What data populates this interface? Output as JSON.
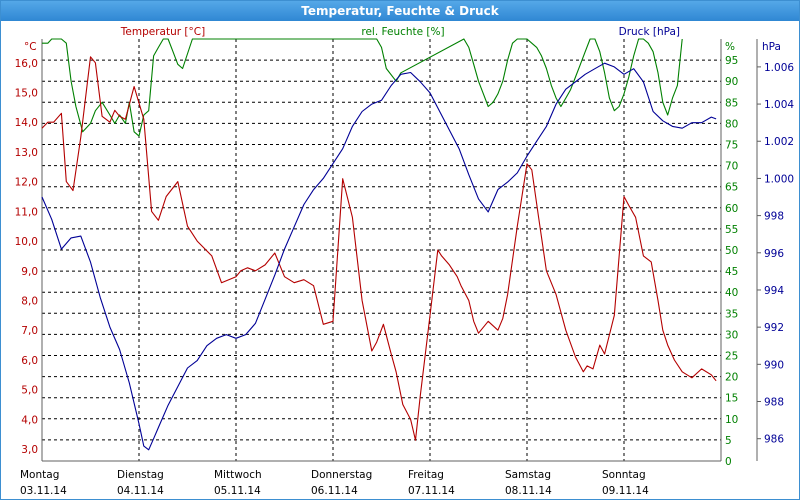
{
  "window": {
    "title": "Temperatur, Feuchte & Druck"
  },
  "chart_data": {
    "type": "line",
    "title": "Temperatur, Feuchte & Druck",
    "grid": true,
    "colors": {
      "temperature": "#b40000",
      "humidity": "#008000",
      "pressure": "#000096",
      "frame": "#3d8fd1"
    },
    "x_axis": {
      "range": [
        0,
        7
      ],
      "days": [
        {
          "day": "Montag",
          "date": "03.11.14"
        },
        {
          "day": "Dienstag",
          "date": "04.11.14"
        },
        {
          "day": "Mittwoch",
          "date": "05.11.14"
        },
        {
          "day": "Donnerstag",
          "date": "06.11.14"
        },
        {
          "day": "Freitag",
          "date": "07.11.14"
        },
        {
          "day": "Samstag",
          "date": "08.11.14"
        },
        {
          "day": "Sonntag",
          "date": "09.11.14"
        }
      ]
    },
    "axes": {
      "temperature": {
        "label": "Temperatur [°C]",
        "unit": "°C",
        "range": [
          2.6,
          16.8
        ],
        "ticks": [
          "16,0",
          "15,0",
          "14,0",
          "13,0",
          "12,0",
          "11,0",
          "10,0",
          "9,0",
          "8,0",
          "7,0",
          "6,0",
          "5,0",
          "4,0",
          "3,0"
        ],
        "tick_values": [
          16,
          15,
          14,
          13,
          12,
          11,
          10,
          9,
          8,
          7,
          6,
          5,
          4,
          3
        ]
      },
      "humidity": {
        "label": "rel. Feuchte [%]",
        "unit": "%",
        "range": [
          0,
          100
        ],
        "ticks": [
          "95",
          "90",
          "85",
          "80",
          "75",
          "70",
          "65",
          "60",
          "55",
          "50",
          "45",
          "40",
          "35",
          "30",
          "25",
          "20",
          "15",
          "10",
          "5",
          "0"
        ],
        "tick_values": [
          95,
          90,
          85,
          80,
          75,
          70,
          65,
          60,
          55,
          50,
          45,
          40,
          35,
          30,
          25,
          20,
          15,
          10,
          5,
          0
        ]
      },
      "pressure": {
        "label": "Druck [hPa]",
        "unit": "hPa",
        "range": [
          984.8,
          1007.5
        ],
        "ticks": [
          "1.006",
          "1.004",
          "1.002",
          "1.000",
          "998",
          "996",
          "994",
          "992",
          "990",
          "988",
          "986"
        ],
        "tick_values": [
          1006,
          1004,
          1002,
          1000,
          998,
          996,
          994,
          992,
          990,
          988,
          986
        ]
      }
    },
    "series": [
      {
        "name": "Temperatur [°C]",
        "key": "temperature",
        "x": [
          0,
          0.06,
          0.12,
          0.2,
          0.25,
          0.32,
          0.4,
          0.5,
          0.55,
          0.62,
          0.7,
          0.75,
          0.8,
          0.86,
          0.95,
          1.05,
          1.13,
          1.2,
          1.28,
          1.4,
          1.5,
          1.6,
          1.75,
          1.85,
          2.0,
          2.05,
          2.12,
          2.2,
          2.3,
          2.4,
          2.5,
          2.6,
          2.7,
          2.8,
          2.9,
          3.0,
          3.1,
          3.2,
          3.3,
          3.4,
          3.45,
          3.52,
          3.6,
          3.65,
          3.72,
          3.8,
          3.85,
          3.9,
          4.0,
          4.08,
          4.12,
          4.2,
          4.28,
          4.32,
          4.4,
          4.45,
          4.5,
          4.6,
          4.7,
          4.75,
          4.8,
          4.9,
          5.0,
          5.05,
          5.12,
          5.2,
          5.3,
          5.4,
          5.5,
          5.58,
          5.62,
          5.68,
          5.75,
          5.8,
          5.9,
          6.0,
          6.05,
          6.12,
          6.2,
          6.28,
          6.35,
          6.4,
          6.45,
          6.52,
          6.6,
          6.7,
          6.8,
          6.9,
          6.95
        ],
        "values": [
          13.8,
          14.0,
          14.0,
          14.3,
          12.0,
          11.7,
          13.5,
          16.2,
          16.0,
          14.2,
          14.0,
          14.4,
          14.2,
          14.1,
          15.2,
          14.1,
          11.0,
          10.7,
          11.5,
          12.0,
          10.5,
          10.0,
          9.5,
          8.6,
          8.8,
          9.0,
          9.1,
          9.0,
          9.2,
          9.6,
          8.8,
          8.6,
          8.7,
          8.5,
          7.2,
          7.3,
          12.1,
          10.8,
          8.0,
          6.3,
          6.6,
          7.2,
          6.2,
          5.6,
          4.5,
          4.0,
          3.3,
          4.8,
          7.5,
          9.7,
          9.5,
          9.2,
          8.8,
          8.5,
          8.0,
          7.3,
          6.9,
          7.3,
          7.0,
          7.4,
          8.2,
          10.5,
          12.6,
          12.4,
          10.8,
          9.0,
          8.2,
          7.0,
          6.1,
          5.6,
          5.8,
          5.7,
          6.5,
          6.2,
          7.5,
          11.5,
          11.2,
          10.8,
          9.5,
          9.3,
          8.0,
          7.0,
          6.5,
          6.0,
          5.6,
          5.4,
          5.7,
          5.5,
          5.3
        ],
        "display_values_note": ""
      },
      {
        "name": "rel. Feuchte [%]",
        "key": "humidity",
        "x": [
          0,
          0.06,
          0.1,
          0.15,
          0.2,
          0.25,
          0.3,
          0.35,
          0.42,
          0.5,
          0.55,
          0.62,
          0.7,
          0.75,
          0.8,
          0.86,
          0.9,
          0.95,
          1.0,
          1.05,
          1.1,
          1.15,
          1.2,
          1.25,
          1.3,
          1.35,
          1.4,
          1.45,
          1.55,
          3.45,
          3.5,
          3.55,
          3.65,
          3.7,
          4.35,
          4.4,
          4.45,
          4.5,
          4.55,
          4.6,
          4.65,
          4.7,
          4.75,
          4.8,
          4.85,
          4.9,
          4.95,
          5.0,
          5.05,
          5.1,
          5.15,
          5.2,
          5.25,
          5.3,
          5.35,
          5.4,
          5.45,
          5.5,
          5.55,
          5.6,
          5.65,
          5.7,
          5.75,
          5.8,
          5.85,
          5.9,
          5.95,
          6.0,
          6.05,
          6.1,
          6.15,
          6.2,
          6.25,
          6.3,
          6.35,
          6.4,
          6.45,
          6.5,
          6.55,
          6.6
        ],
        "values": [
          99,
          99,
          100,
          100,
          100,
          99,
          90,
          84,
          78,
          80,
          83,
          85,
          82,
          80,
          82,
          80,
          85,
          78,
          77,
          82,
          83,
          96,
          98,
          100,
          100,
          97,
          94,
          93,
          100,
          100,
          98,
          93,
          90,
          92,
          100,
          98,
          94,
          90,
          87,
          84,
          85,
          87,
          90,
          95,
          99,
          100,
          100,
          100,
          99,
          98,
          96,
          93,
          89,
          86,
          84,
          86,
          88,
          91,
          94,
          97,
          100,
          100,
          97,
          92,
          86,
          83,
          84,
          87,
          91,
          96,
          100,
          100,
          99,
          97,
          92,
          85,
          82,
          86,
          89,
          100
        ]
      },
      {
        "name": "Druck [hPa]",
        "key": "pressure",
        "x": [
          0,
          0.1,
          0.2,
          0.3,
          0.4,
          0.5,
          0.6,
          0.7,
          0.8,
          0.9,
          1.0,
          1.05,
          1.1,
          1.15,
          1.2,
          1.3,
          1.4,
          1.5,
          1.6,
          1.7,
          1.8,
          1.9,
          2.0,
          2.1,
          2.2,
          2.3,
          2.4,
          2.5,
          2.6,
          2.7,
          2.8,
          2.9,
          3.0,
          3.1,
          3.2,
          3.3,
          3.4,
          3.5,
          3.6,
          3.7,
          3.8,
          3.9,
          4.0,
          4.1,
          4.2,
          4.3,
          4.4,
          4.5,
          4.6,
          4.7,
          4.8,
          4.9,
          5.0,
          5.1,
          5.2,
          5.3,
          5.4,
          5.5,
          5.6,
          5.7,
          5.8,
          5.9,
          6.0,
          6.1,
          6.2,
          6.3,
          6.4,
          6.5,
          6.6,
          6.7,
          6.8,
          6.9,
          6.95
        ],
        "values": [
          999.0,
          997.8,
          996.2,
          996.8,
          996.9,
          995.5,
          993.6,
          992.0,
          990.8,
          989.0,
          986.8,
          985.6,
          985.4,
          986.0,
          986.6,
          987.8,
          988.8,
          989.8,
          990.2,
          991.0,
          991.4,
          991.6,
          991.4,
          991.6,
          992.2,
          993.5,
          994.8,
          996.2,
          997.4,
          998.6,
          999.4,
          1000.0,
          1000.8,
          1001.6,
          1002.8,
          1003.6,
          1004.0,
          1004.2,
          1005.0,
          1005.6,
          1005.7,
          1005.2,
          1004.6,
          1003.6,
          1002.6,
          1001.6,
          1000.2,
          998.9,
          998.2,
          999.4,
          999.8,
          1000.3,
          1001.2,
          1002.0,
          1002.8,
          1004.0,
          1004.8,
          1005.2,
          1005.6,
          1005.9,
          1006.2,
          1006.0,
          1005.6,
          1005.9,
          1005.2,
          1003.6,
          1003.1,
          1002.8,
          1002.7,
          1003.0,
          1003.0,
          1003.3,
          1003.2
        ]
      }
    ]
  }
}
